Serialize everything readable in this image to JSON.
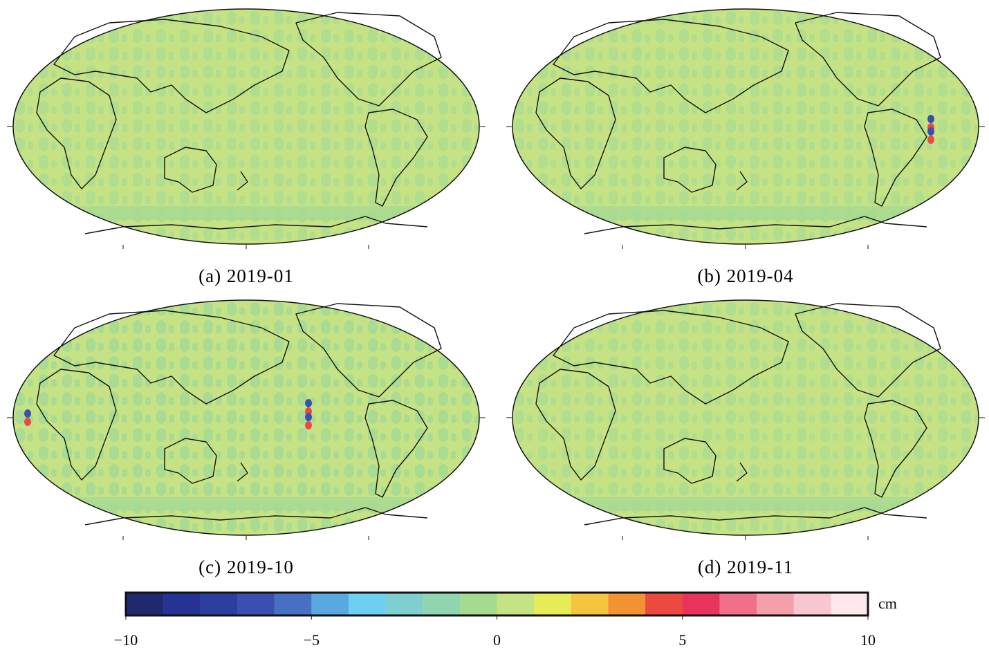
{
  "panels": [
    {
      "caption": "(a) 2019-01"
    },
    {
      "caption": "(b) 2019-04"
    },
    {
      "caption": "(c) 2019-10"
    },
    {
      "caption": "(d) 2019-11"
    }
  ],
  "colorbar": {
    "lim": [
      -10,
      10
    ],
    "ticks": [
      {
        "value": -10,
        "label": "−10"
      },
      {
        "value": -5,
        "label": "−5"
      },
      0,
      5,
      10
    ],
    "unit": "cm",
    "colors": [
      "#1f2a6e",
      "#253494",
      "#2c3e9e",
      "#3a4fb0",
      "#4670c4",
      "#5aa8e0",
      "#6dd0f3",
      "#7fcfd0",
      "#8fd6b0",
      "#a4db8e",
      "#c5e384",
      "#e6eb58",
      "#f6c540",
      "#f39233",
      "#ea4a40",
      "#e8345a",
      "#ef7088",
      "#f4a0aa",
      "#f8c6d0",
      "#fde8ec"
    ]
  }
}
